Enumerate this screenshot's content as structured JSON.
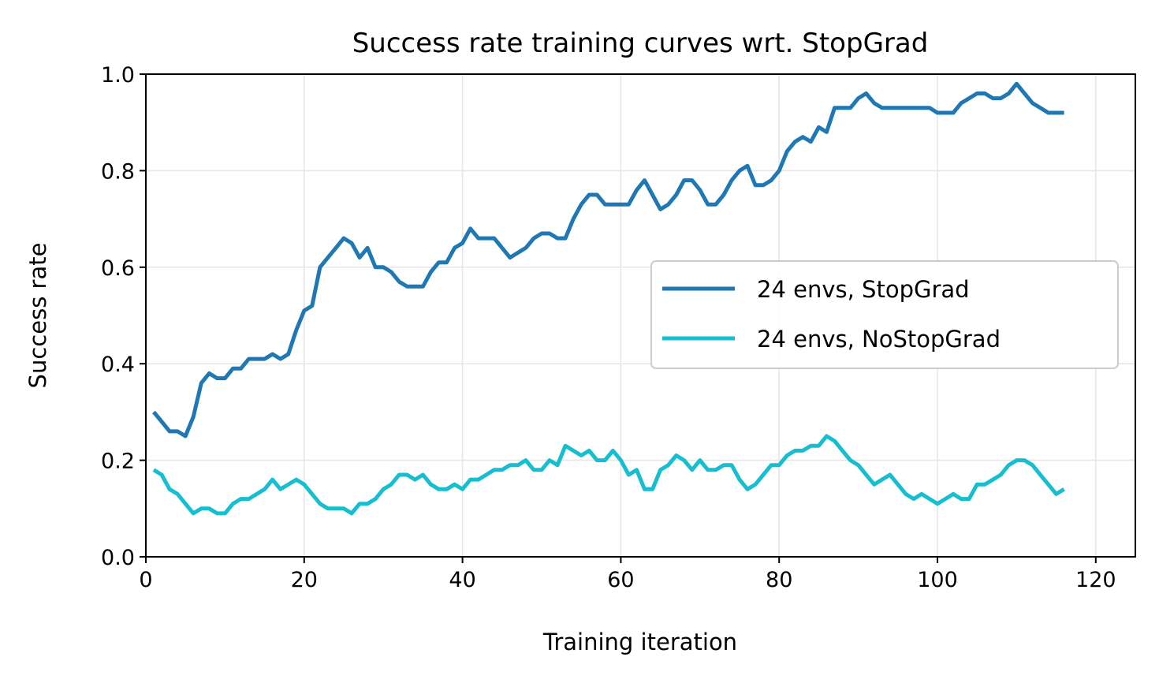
{
  "chart_data": {
    "type": "line",
    "title": "Success rate training curves wrt. StopGrad",
    "xlabel": "Training iteration",
    "ylabel": "Success rate",
    "xlim": [
      0,
      125
    ],
    "ylim": [
      0.0,
      1.0
    ],
    "xticks": [
      0,
      20,
      40,
      60,
      80,
      100,
      120
    ],
    "xtick_labels": [
      "0",
      "20",
      "40",
      "60",
      "80",
      "100",
      "120"
    ],
    "yticks": [
      0.0,
      0.2,
      0.4,
      0.6,
      0.8,
      1.0
    ],
    "ytick_labels": [
      "0.0",
      "0.2",
      "0.4",
      "0.6",
      "0.8",
      "1.0"
    ],
    "grid": true,
    "legend_position": "center-right",
    "series": [
      {
        "name": "24 envs, StopGrad",
        "color": "#1f77b4",
        "x": [
          1,
          2,
          3,
          4,
          5,
          6,
          7,
          8,
          9,
          10,
          11,
          12,
          13,
          14,
          15,
          16,
          17,
          18,
          19,
          20,
          21,
          22,
          23,
          24,
          25,
          26,
          27,
          28,
          29,
          30,
          31,
          32,
          33,
          34,
          35,
          36,
          37,
          38,
          39,
          40,
          41,
          42,
          43,
          44,
          45,
          46,
          47,
          48,
          49,
          50,
          51,
          52,
          53,
          54,
          55,
          56,
          57,
          58,
          59,
          60,
          61,
          62,
          63,
          64,
          65,
          66,
          67,
          68,
          69,
          70,
          71,
          72,
          73,
          74,
          75,
          76,
          77,
          78,
          79,
          80,
          81,
          82,
          83,
          84,
          85,
          86,
          87,
          88,
          89,
          90,
          91,
          92,
          93,
          94,
          95,
          96,
          97,
          98,
          99,
          100,
          101,
          102,
          103,
          104,
          105,
          106,
          107,
          108,
          109,
          110,
          111,
          112,
          113,
          114,
          115,
          116
        ],
        "y": [
          0.3,
          0.28,
          0.26,
          0.26,
          0.25,
          0.29,
          0.36,
          0.38,
          0.37,
          0.37,
          0.39,
          0.39,
          0.41,
          0.41,
          0.41,
          0.42,
          0.41,
          0.42,
          0.47,
          0.51,
          0.52,
          0.6,
          0.62,
          0.64,
          0.66,
          0.65,
          0.62,
          0.64,
          0.6,
          0.6,
          0.59,
          0.57,
          0.56,
          0.56,
          0.56,
          0.59,
          0.61,
          0.61,
          0.64,
          0.65,
          0.68,
          0.66,
          0.66,
          0.66,
          0.64,
          0.62,
          0.63,
          0.64,
          0.66,
          0.67,
          0.67,
          0.66,
          0.66,
          0.7,
          0.73,
          0.75,
          0.75,
          0.73,
          0.73,
          0.73,
          0.73,
          0.76,
          0.78,
          0.75,
          0.72,
          0.73,
          0.75,
          0.78,
          0.78,
          0.76,
          0.73,
          0.73,
          0.75,
          0.78,
          0.8,
          0.81,
          0.77,
          0.77,
          0.78,
          0.8,
          0.84,
          0.86,
          0.87,
          0.86,
          0.89,
          0.88,
          0.93,
          0.93,
          0.93,
          0.95,
          0.96,
          0.94,
          0.93,
          0.93,
          0.93,
          0.93,
          0.93,
          0.93,
          0.93,
          0.92,
          0.92,
          0.92,
          0.94,
          0.95,
          0.96,
          0.96,
          0.95,
          0.95,
          0.96,
          0.98,
          0.96,
          0.94,
          0.93,
          0.92,
          0.92,
          0.92
        ]
      },
      {
        "name": "24 envs, NoStopGrad",
        "color": "#17becf",
        "x": [
          1,
          2,
          3,
          4,
          5,
          6,
          7,
          8,
          9,
          10,
          11,
          12,
          13,
          14,
          15,
          16,
          17,
          18,
          19,
          20,
          21,
          22,
          23,
          24,
          25,
          26,
          27,
          28,
          29,
          30,
          31,
          32,
          33,
          34,
          35,
          36,
          37,
          38,
          39,
          40,
          41,
          42,
          43,
          44,
          45,
          46,
          47,
          48,
          49,
          50,
          51,
          52,
          53,
          54,
          55,
          56,
          57,
          58,
          59,
          60,
          61,
          62,
          63,
          64,
          65,
          66,
          67,
          68,
          69,
          70,
          71,
          72,
          73,
          74,
          75,
          76,
          77,
          78,
          79,
          80,
          81,
          82,
          83,
          84,
          85,
          86,
          87,
          88,
          89,
          90,
          91,
          92,
          93,
          94,
          95,
          96,
          97,
          98,
          99,
          100,
          101,
          102,
          103,
          104,
          105,
          106,
          107,
          108,
          109,
          110,
          111,
          112,
          113,
          114,
          115,
          116
        ],
        "y": [
          0.18,
          0.17,
          0.14,
          0.13,
          0.11,
          0.09,
          0.1,
          0.1,
          0.09,
          0.09,
          0.11,
          0.12,
          0.12,
          0.13,
          0.14,
          0.16,
          0.14,
          0.15,
          0.16,
          0.15,
          0.13,
          0.11,
          0.1,
          0.1,
          0.1,
          0.09,
          0.11,
          0.11,
          0.12,
          0.14,
          0.15,
          0.17,
          0.17,
          0.16,
          0.17,
          0.15,
          0.14,
          0.14,
          0.15,
          0.14,
          0.16,
          0.16,
          0.17,
          0.18,
          0.18,
          0.19,
          0.19,
          0.2,
          0.18,
          0.18,
          0.2,
          0.19,
          0.23,
          0.22,
          0.21,
          0.22,
          0.2,
          0.2,
          0.22,
          0.2,
          0.17,
          0.18,
          0.14,
          0.14,
          0.18,
          0.19,
          0.21,
          0.2,
          0.18,
          0.2,
          0.18,
          0.18,
          0.19,
          0.19,
          0.16,
          0.14,
          0.15,
          0.17,
          0.19,
          0.19,
          0.21,
          0.22,
          0.22,
          0.23,
          0.23,
          0.25,
          0.24,
          0.22,
          0.2,
          0.19,
          0.17,
          0.15,
          0.16,
          0.17,
          0.15,
          0.13,
          0.12,
          0.13,
          0.12,
          0.11,
          0.12,
          0.13,
          0.12,
          0.12,
          0.15,
          0.15,
          0.16,
          0.17,
          0.19,
          0.2,
          0.2,
          0.19,
          0.17,
          0.15,
          0.13,
          0.14
        ]
      }
    ]
  }
}
